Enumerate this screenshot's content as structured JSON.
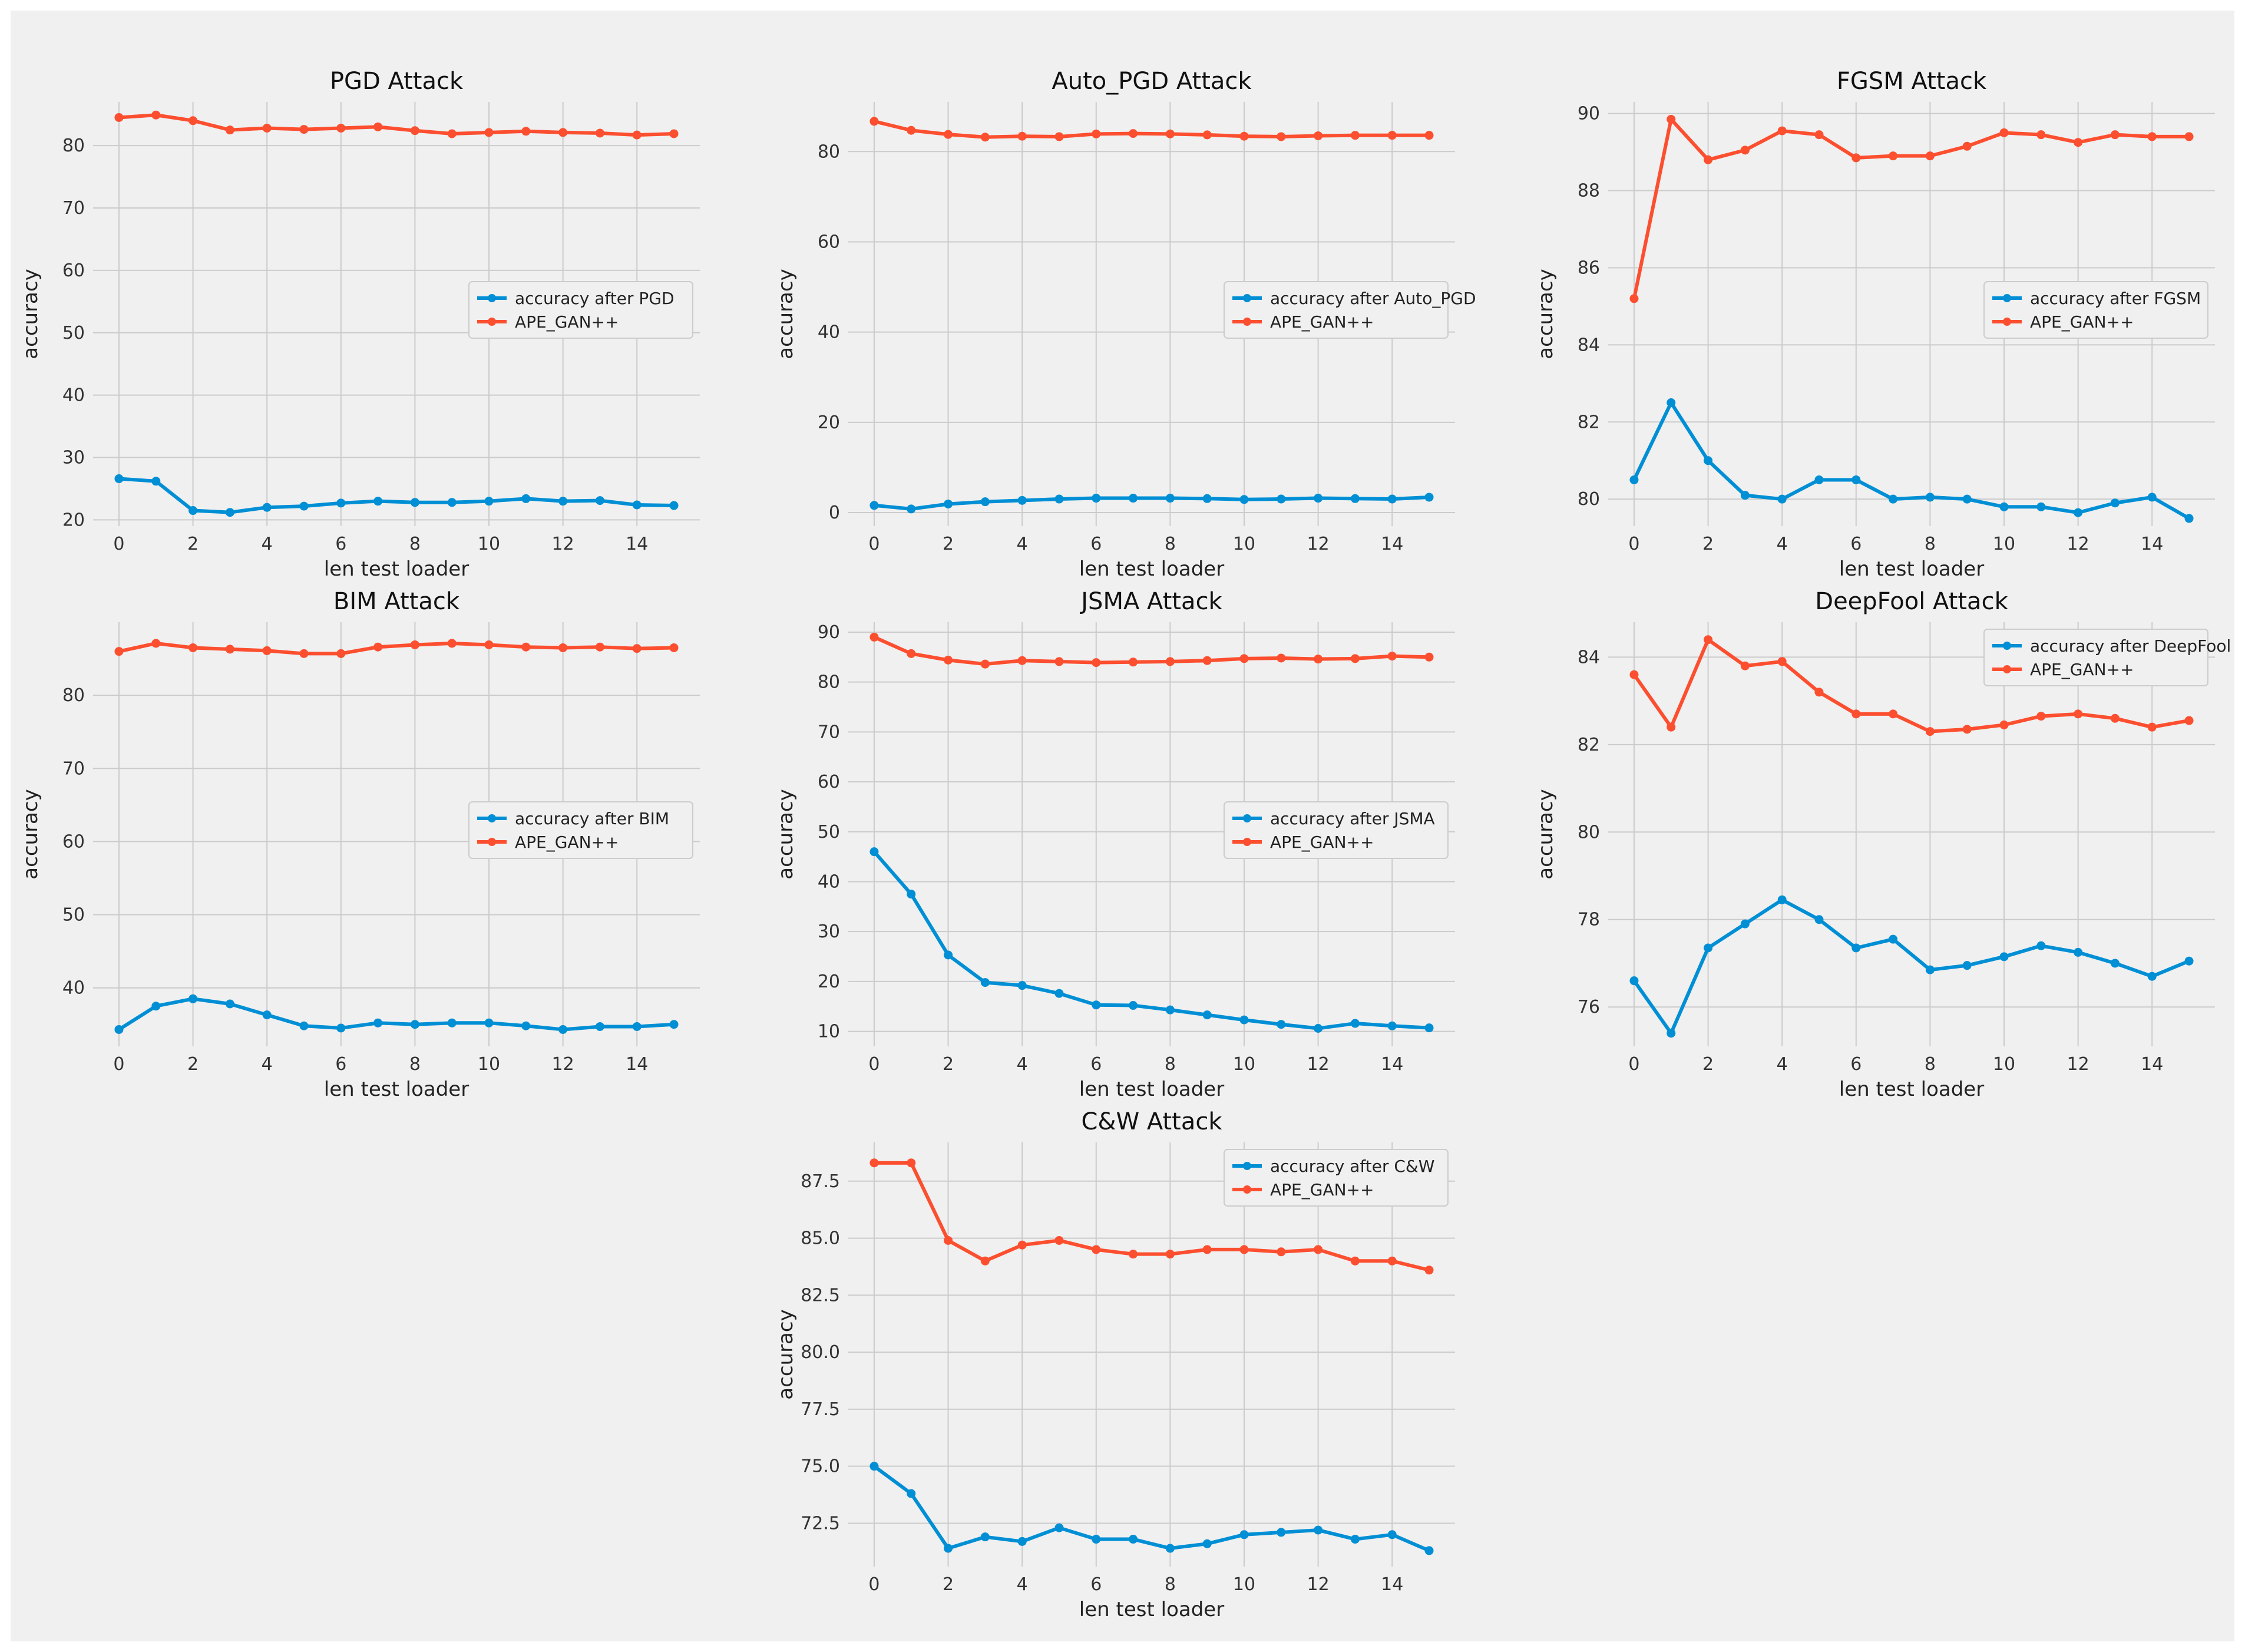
{
  "colors": {
    "background": "#f0f0f0",
    "grid": "#cbcbcb",
    "blue": "#008fd5",
    "red": "#fc4f30"
  },
  "chart_data": [
    {
      "type": "line",
      "title": "PGD Attack",
      "xlabel": "len test loader",
      "ylabel": "accuracy",
      "x": [
        0,
        1,
        2,
        3,
        4,
        5,
        6,
        7,
        8,
        9,
        10,
        11,
        12,
        13,
        14,
        15
      ],
      "xticks": [
        0,
        2,
        4,
        6,
        8,
        10,
        12,
        14
      ],
      "yticks": [
        20,
        30,
        40,
        50,
        60,
        70,
        80
      ],
      "ytick_labels": [
        "20",
        "30",
        "40",
        "50",
        "60",
        "70",
        "80"
      ],
      "ylim": [
        19.0,
        87.0
      ],
      "legend_loc": "center-right",
      "series": [
        {
          "name": "accuracy after PGD",
          "color": "#008fd5",
          "values": [
            26.6,
            26.2,
            21.5,
            21.2,
            22.0,
            22.2,
            22.7,
            23.0,
            22.8,
            22.8,
            23.0,
            23.4,
            23.0,
            23.1,
            22.4,
            22.3
          ]
        },
        {
          "name": "APE_GAN++",
          "color": "#fc4f30",
          "values": [
            84.5,
            84.9,
            84.0,
            82.5,
            82.8,
            82.6,
            82.8,
            83.0,
            82.4,
            81.9,
            82.1,
            82.3,
            82.1,
            82.0,
            81.7,
            81.9
          ]
        }
      ]
    },
    {
      "type": "line",
      "title": "Auto_PGD Attack",
      "xlabel": "len test loader",
      "ylabel": "accuracy",
      "x": [
        0,
        1,
        2,
        3,
        4,
        5,
        6,
        7,
        8,
        9,
        10,
        11,
        12,
        13,
        14,
        15
      ],
      "xticks": [
        0,
        2,
        4,
        6,
        8,
        10,
        12,
        14
      ],
      "yticks": [
        0,
        20,
        40,
        60,
        80
      ],
      "ytick_labels": [
        "0",
        "20",
        "40",
        "60",
        "80"
      ],
      "ylim": [
        -3.0,
        91.0
      ],
      "legend_loc": "center-right",
      "series": [
        {
          "name": "accuracy after Auto_PGD",
          "color": "#008fd5",
          "values": [
            1.6,
            0.8,
            1.9,
            2.4,
            2.7,
            3.0,
            3.2,
            3.2,
            3.2,
            3.1,
            2.9,
            3.0,
            3.2,
            3.1,
            3.0,
            3.4
          ]
        },
        {
          "name": "APE_GAN++",
          "color": "#fc4f30",
          "values": [
            86.7,
            84.7,
            83.8,
            83.2,
            83.4,
            83.3,
            83.9,
            84.0,
            83.9,
            83.7,
            83.4,
            83.3,
            83.5,
            83.6,
            83.6,
            83.6
          ]
        }
      ]
    },
    {
      "type": "line",
      "title": "FGSM Attack",
      "xlabel": "len test loader",
      "ylabel": "accuracy",
      "x": [
        0,
        1,
        2,
        3,
        4,
        5,
        6,
        7,
        8,
        9,
        10,
        11,
        12,
        13,
        14,
        15
      ],
      "xticks": [
        0,
        2,
        4,
        6,
        8,
        10,
        12,
        14
      ],
      "yticks": [
        80,
        82,
        84,
        86,
        88,
        90
      ],
      "ytick_labels": [
        "80",
        "82",
        "84",
        "86",
        "88",
        "90"
      ],
      "ylim": [
        79.3,
        90.3
      ],
      "legend_loc": "center-right",
      "series": [
        {
          "name": "accuracy after FGSM",
          "color": "#008fd5",
          "values": [
            80.5,
            82.5,
            81.0,
            80.1,
            80.0,
            80.5,
            80.5,
            80.0,
            80.05,
            80.0,
            79.8,
            79.8,
            79.65,
            79.9,
            80.05,
            79.5
          ]
        },
        {
          "name": "APE_GAN++",
          "color": "#fc4f30",
          "values": [
            85.2,
            89.85,
            88.8,
            89.05,
            89.55,
            89.45,
            88.85,
            88.9,
            88.9,
            89.15,
            89.5,
            89.45,
            89.25,
            89.45,
            89.4,
            89.4
          ]
        }
      ]
    },
    {
      "type": "line",
      "title": "BIM Attack",
      "xlabel": "len test loader",
      "ylabel": "accuracy",
      "x": [
        0,
        1,
        2,
        3,
        4,
        5,
        6,
        7,
        8,
        9,
        10,
        11,
        12,
        13,
        14,
        15
      ],
      "xticks": [
        0,
        2,
        4,
        6,
        8,
        10,
        12,
        14
      ],
      "yticks": [
        40,
        50,
        60,
        70,
        80
      ],
      "ytick_labels": [
        "40",
        "50",
        "60",
        "70",
        "80"
      ],
      "ylim": [
        32.0,
        90.0
      ],
      "legend_loc": "center-right",
      "series": [
        {
          "name": "accuracy after BIM",
          "color": "#008fd5",
          "values": [
            34.3,
            37.5,
            38.5,
            37.8,
            36.3,
            34.8,
            34.5,
            35.2,
            35.0,
            35.2,
            35.2,
            34.8,
            34.3,
            34.7,
            34.7,
            35.0
          ]
        },
        {
          "name": "APE_GAN++",
          "color": "#fc4f30",
          "values": [
            86.0,
            87.1,
            86.5,
            86.3,
            86.1,
            85.7,
            85.7,
            86.6,
            86.9,
            87.1,
            86.9,
            86.6,
            86.5,
            86.6,
            86.4,
            86.5
          ]
        }
      ]
    },
    {
      "type": "line",
      "title": "JSMA Attack",
      "xlabel": "len test loader",
      "ylabel": "accuracy",
      "x": [
        0,
        1,
        2,
        3,
        4,
        5,
        6,
        7,
        8,
        9,
        10,
        11,
        12,
        13,
        14,
        15
      ],
      "xticks": [
        0,
        2,
        4,
        6,
        8,
        10,
        12,
        14
      ],
      "yticks": [
        10,
        20,
        30,
        40,
        50,
        60,
        70,
        80,
        90
      ],
      "ytick_labels": [
        "10",
        "20",
        "30",
        "40",
        "50",
        "60",
        "70",
        "80",
        "90"
      ],
      "ylim": [
        7.0,
        92.0
      ],
      "legend_loc": "center-right",
      "series": [
        {
          "name": "accuracy after JSMA",
          "color": "#008fd5",
          "values": [
            46.0,
            37.5,
            25.3,
            19.8,
            19.2,
            17.6,
            15.3,
            15.2,
            14.3,
            13.3,
            12.3,
            11.4,
            10.6,
            11.6,
            11.1,
            10.7
          ]
        },
        {
          "name": "APE_GAN++",
          "color": "#fc4f30",
          "values": [
            89.0,
            85.7,
            84.4,
            83.6,
            84.3,
            84.1,
            83.9,
            84.0,
            84.1,
            84.3,
            84.7,
            84.8,
            84.6,
            84.7,
            85.2,
            85.0
          ]
        }
      ]
    },
    {
      "type": "line",
      "title": "DeepFool Attack",
      "xlabel": "len test loader",
      "ylabel": "accuracy",
      "x": [
        0,
        1,
        2,
        3,
        4,
        5,
        6,
        7,
        8,
        9,
        10,
        11,
        12,
        13,
        14,
        15
      ],
      "xticks": [
        0,
        2,
        4,
        6,
        8,
        10,
        12,
        14
      ],
      "yticks": [
        76,
        78,
        80,
        82,
        84
      ],
      "ytick_labels": [
        "76",
        "78",
        "80",
        "82",
        "84"
      ],
      "ylim": [
        75.1,
        84.8
      ],
      "legend_loc": "top-right",
      "series": [
        {
          "name": "accuracy after DeepFool",
          "color": "#008fd5",
          "values": [
            76.6,
            75.4,
            77.35,
            77.9,
            78.45,
            78.0,
            77.35,
            77.55,
            76.85,
            76.95,
            77.15,
            77.4,
            77.25,
            77.0,
            76.7,
            77.05
          ]
        },
        {
          "name": "APE_GAN++",
          "color": "#fc4f30",
          "values": [
            83.6,
            82.4,
            84.4,
            83.8,
            83.9,
            83.2,
            82.7,
            82.7,
            82.3,
            82.35,
            82.45,
            82.65,
            82.7,
            82.6,
            82.4,
            82.55
          ]
        }
      ]
    },
    {
      "type": "line",
      "title": "C&W Attack",
      "xlabel": "len test loader",
      "ylabel": "accuracy",
      "x": [
        0,
        1,
        2,
        3,
        4,
        5,
        6,
        7,
        8,
        9,
        10,
        11,
        12,
        13,
        14,
        15
      ],
      "xticks": [
        0,
        2,
        4,
        6,
        8,
        10,
        12,
        14
      ],
      "yticks": [
        72.5,
        75.0,
        77.5,
        80.0,
        82.5,
        85.0,
        87.5
      ],
      "ytick_labels": [
        "72.5",
        "75.0",
        "77.5",
        "80.0",
        "82.5",
        "85.0",
        "87.5"
      ],
      "ylim": [
        70.6,
        89.2
      ],
      "legend_loc": "top-right",
      "series": [
        {
          "name": "accuracy after C&W",
          "color": "#008fd5",
          "values": [
            75.0,
            73.8,
            71.4,
            71.9,
            71.7,
            72.3,
            71.8,
            71.8,
            71.4,
            71.6,
            72.0,
            72.1,
            72.2,
            71.8,
            72.0,
            71.3
          ]
        },
        {
          "name": "APE_GAN++",
          "color": "#fc4f30",
          "values": [
            88.3,
            88.3,
            84.9,
            84.0,
            84.7,
            84.9,
            84.5,
            84.3,
            84.3,
            84.5,
            84.5,
            84.4,
            84.5,
            84.0,
            84.0,
            83.6
          ]
        }
      ]
    }
  ]
}
